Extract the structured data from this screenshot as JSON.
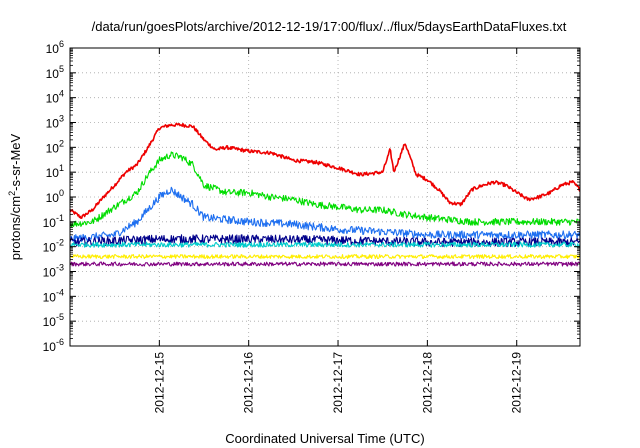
{
  "chart_data": {
    "type": "line",
    "title": "/data/run/goesPlots/archive/2012-12-19/17:00/flux/../flux/5daysEarthDataFluxes.txt",
    "xlabel": "Coordinated Universal Time (UTC)",
    "ylabel_base": "protons/cm",
    "ylabel_sup": "2",
    "ylabel_tail": "-s-sr-MeV",
    "y_scale": "log",
    "ylim": [
      1e-06,
      1000000.0
    ],
    "y_ticks": [
      {
        "base": "10",
        "exp": "-6"
      },
      {
        "base": "10",
        "exp": "-5"
      },
      {
        "base": "10",
        "exp": "-4"
      },
      {
        "base": "10",
        "exp": "-3"
      },
      {
        "base": "10",
        "exp": "-2"
      },
      {
        "base": "10",
        "exp": "-1"
      },
      {
        "base": "10",
        "exp": "0"
      },
      {
        "base": "10",
        "exp": "1"
      },
      {
        "base": "10",
        "exp": "2"
      },
      {
        "base": "10",
        "exp": "3"
      },
      {
        "base": "10",
        "exp": "4"
      },
      {
        "base": "10",
        "exp": "5"
      },
      {
        "base": "10",
        "exp": "6"
      }
    ],
    "x_start": "2012-12-14T00:00",
    "x_end": "2012-12-19T17:00",
    "x_ticks": [
      "2012-12-15",
      "2012-12-16",
      "2012-12-17",
      "2012-12-18",
      "2012-12-19"
    ],
    "grid": true,
    "series": [
      {
        "color": "#ee0000",
        "values": [
          [
            "2012-12-14T00:00",
            0.3
          ],
          [
            "2012-12-14T03:00",
            0.15
          ],
          [
            "2012-12-14T06:00",
            0.3
          ],
          [
            "2012-12-14T09:00",
            1.0
          ],
          [
            "2012-12-14T12:00",
            3
          ],
          [
            "2012-12-14T15:00",
            10
          ],
          [
            "2012-12-14T18:00",
            20
          ],
          [
            "2012-12-14T21:00",
            100
          ],
          [
            "2012-12-15T00:00",
            600
          ],
          [
            "2012-12-15T03:00",
            800
          ],
          [
            "2012-12-15T06:00",
            800
          ],
          [
            "2012-12-15T09:00",
            700
          ],
          [
            "2012-12-15T12:00",
            200
          ],
          [
            "2012-12-15T15:00",
            80
          ],
          [
            "2012-12-15T18:00",
            100
          ],
          [
            "2012-12-16T00:00",
            70
          ],
          [
            "2012-12-16T06:00",
            60
          ],
          [
            "2012-12-16T12:00",
            30
          ],
          [
            "2012-12-16T18:00",
            25
          ],
          [
            "2012-12-17T00:00",
            15
          ],
          [
            "2012-12-17T06:00",
            8
          ],
          [
            "2012-12-17T12:00",
            10
          ],
          [
            "2012-12-17T14:00",
            80
          ],
          [
            "2012-12-17T15:00",
            10
          ],
          [
            "2012-12-17T18:00",
            150
          ],
          [
            "2012-12-17T21:00",
            8
          ],
          [
            "2012-12-18T00:00",
            5
          ],
          [
            "2012-12-18T03:00",
            2
          ],
          [
            "2012-12-18T06:00",
            0.6
          ],
          [
            "2012-12-18T09:00",
            0.5
          ],
          [
            "2012-12-18T12:00",
            2
          ],
          [
            "2012-12-18T15:00",
            3
          ],
          [
            "2012-12-18T18:00",
            4
          ],
          [
            "2012-12-18T21:00",
            3
          ],
          [
            "2012-12-19T00:00",
            1.5
          ],
          [
            "2012-12-19T03:00",
            0.8
          ],
          [
            "2012-12-19T06:00",
            1
          ],
          [
            "2012-12-19T09:00",
            1.5
          ],
          [
            "2012-12-19T12:00",
            3
          ],
          [
            "2012-12-19T15:00",
            4
          ],
          [
            "2012-12-19T17:00",
            2
          ]
        ]
      },
      {
        "color": "#00dd00",
        "values": [
          [
            "2012-12-14T00:00",
            0.08
          ],
          [
            "2012-12-14T06:00",
            0.1
          ],
          [
            "2012-12-14T12:00",
            0.4
          ],
          [
            "2012-12-14T18:00",
            1.5
          ],
          [
            "2012-12-14T21:00",
            8
          ],
          [
            "2012-12-15T00:00",
            30
          ],
          [
            "2012-12-15T03:00",
            50
          ],
          [
            "2012-12-15T06:00",
            40
          ],
          [
            "2012-12-15T09:00",
            20
          ],
          [
            "2012-12-15T12:00",
            3
          ],
          [
            "2012-12-15T18:00",
            1.5
          ],
          [
            "2012-12-16T00:00",
            1.5
          ],
          [
            "2012-12-16T06:00",
            1.0
          ],
          [
            "2012-12-16T12:00",
            0.8
          ],
          [
            "2012-12-16T18:00",
            0.5
          ],
          [
            "2012-12-17T00:00",
            0.4
          ],
          [
            "2012-12-17T06:00",
            0.3
          ],
          [
            "2012-12-17T12:00",
            0.3
          ],
          [
            "2012-12-17T18:00",
            0.2
          ],
          [
            "2012-12-18T00:00",
            0.15
          ],
          [
            "2012-12-18T12:00",
            0.1
          ],
          [
            "2012-12-19T00:00",
            0.1
          ],
          [
            "2012-12-19T17:00",
            0.1
          ]
        ]
      },
      {
        "color": "#1e6ff0",
        "values": [
          [
            "2012-12-14T00:00",
            0.02
          ],
          [
            "2012-12-14T12:00",
            0.03
          ],
          [
            "2012-12-14T18:00",
            0.1
          ],
          [
            "2012-12-15T00:00",
            1.0
          ],
          [
            "2012-12-15T03:00",
            2.0
          ],
          [
            "2012-12-15T06:00",
            1.0
          ],
          [
            "2012-12-15T09:00",
            0.5
          ],
          [
            "2012-12-15T12:00",
            0.15
          ],
          [
            "2012-12-16T00:00",
            0.1
          ],
          [
            "2012-12-16T12:00",
            0.08
          ],
          [
            "2012-12-17T00:00",
            0.05
          ],
          [
            "2012-12-17T12:00",
            0.04
          ],
          [
            "2012-12-18T00:00",
            0.03
          ],
          [
            "2012-12-18T12:00",
            0.03
          ],
          [
            "2012-12-19T00:00",
            0.03
          ],
          [
            "2012-12-19T17:00",
            0.03
          ]
        ]
      },
      {
        "color": "#00008b",
        "values": [
          [
            "2012-12-14T00:00",
            0.015
          ],
          [
            "2012-12-15T00:00",
            0.02
          ],
          [
            "2012-12-16T00:00",
            0.02
          ],
          [
            "2012-12-17T00:00",
            0.018
          ],
          [
            "2012-12-18T00:00",
            0.015
          ],
          [
            "2012-12-19T00:00",
            0.015
          ],
          [
            "2012-12-19T17:00",
            0.015
          ]
        ]
      },
      {
        "color": "#00cccc",
        "values": [
          [
            "2012-12-14T00:00",
            0.012
          ],
          [
            "2012-12-19T17:00",
            0.012
          ]
        ]
      },
      {
        "color": "#ffee00",
        "values": [
          [
            "2012-12-14T00:00",
            0.004
          ],
          [
            "2012-12-19T17:00",
            0.004
          ]
        ]
      },
      {
        "color": "#800080",
        "values": [
          [
            "2012-12-14T00:00",
            0.002
          ],
          [
            "2012-12-19T17:00",
            0.002
          ]
        ]
      }
    ]
  }
}
